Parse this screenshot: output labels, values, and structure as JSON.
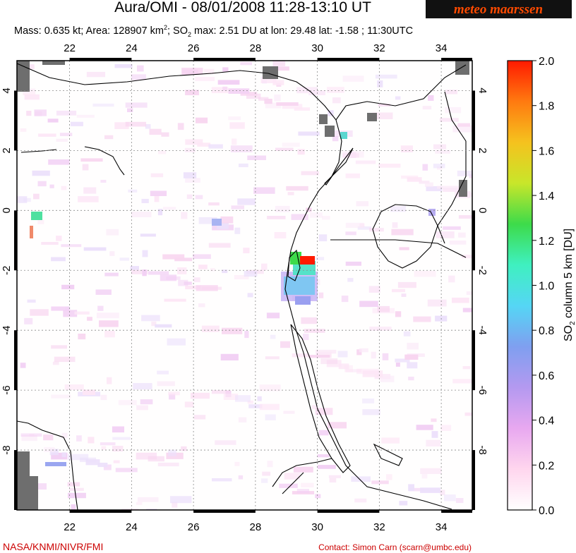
{
  "title": "Aura/OMI - 08/01/2008 11:28-13:10 UT",
  "logo_text": "meteo maarssen",
  "subtitle": {
    "mass_prefix": "Mass: 0.635 kt; Area: 128907 km",
    "mass_sup": "2",
    "so2_prefix": "; SO",
    "so2_sub": "2",
    "so2_rest": " max: 2.51 DU at lon: 29.48 lat: -1.58 ; 11:30UTC"
  },
  "map": {
    "lon_ticks": [
      "22",
      "24",
      "26",
      "28",
      "30",
      "32",
      "34"
    ],
    "lat_ticks": [
      "4",
      "2",
      "0",
      "-2",
      "-4",
      "-6",
      "-8"
    ],
    "lon_values": [
      22,
      24,
      26,
      28,
      30,
      32,
      34
    ],
    "lat_values": [
      4,
      2,
      0,
      -2,
      -4,
      -6,
      -8
    ],
    "lon_range": [
      20.3,
      35.0
    ],
    "lat_range": [
      -10.0,
      5.0
    ],
    "grid": "dotted"
  },
  "colorbar": {
    "ticks": [
      "2.0",
      "1.8",
      "1.6",
      "1.4",
      "1.2",
      "1.0",
      "0.8",
      "0.6",
      "0.4",
      "0.2",
      "0.0"
    ],
    "tick_values": [
      2.0,
      1.8,
      1.6,
      1.4,
      1.2,
      1.0,
      0.8,
      0.6,
      0.4,
      0.2,
      0.0
    ],
    "range": [
      0.0,
      2.0
    ],
    "label_main": "SO",
    "label_sub": "2",
    "label_rest": " column 5 km [DU]",
    "stops": [
      "#ffffff",
      "#ffd6ee",
      "#e8a8f0",
      "#b499f0",
      "#7f9ff0",
      "#55d6f5",
      "#3ff0c0",
      "#3ddb4a",
      "#c8e62a",
      "#f5c21e",
      "#ff7a10",
      "#ff1a00"
    ]
  },
  "footer": {
    "left": "NASA/KNMI/NIVR/FMI",
    "right": "Contact: Simon Carn (scarn@umbc.edu)"
  },
  "colors": {
    "footer_red": "#cc0000",
    "logo_bg": "#111111",
    "logo_fg": "#ff4a00",
    "nodata": "#6e6e6e"
  }
}
